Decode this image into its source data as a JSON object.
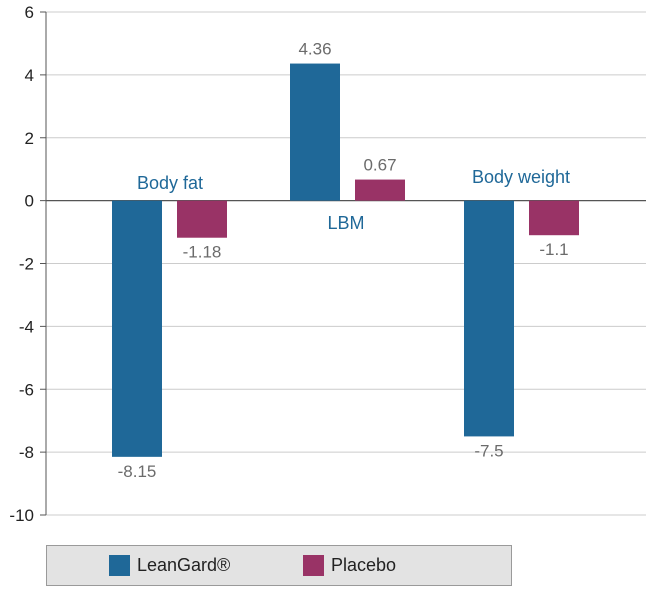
{
  "chart_data": {
    "type": "bar",
    "categories": [
      "Body fat",
      "LBM",
      "Body weight"
    ],
    "series": [
      {
        "name": "LeanGard®",
        "values": [
          -8.15,
          4.36,
          -7.5
        ],
        "labels": [
          "-8.15",
          "4.36",
          "-7.5"
        ],
        "color": "#1f6898"
      },
      {
        "name": "Placebo",
        "values": [
          -1.18,
          0.67,
          -1.1
        ],
        "labels": [
          "-1.18",
          "0.67",
          "-1.1"
        ],
        "color": "#993366"
      }
    ],
    "y_ticks": [
      6,
      4,
      2,
      0,
      -2,
      -4,
      -6,
      -8,
      -10
    ],
    "y_tick_labels": [
      "6",
      "4",
      "2",
      "0",
      "-2",
      "-4",
      "-6",
      "-8",
      "-10"
    ],
    "ylim": [
      -10,
      6
    ],
    "grid": true,
    "legend_position": "bottom-left",
    "category_label_color": "#1f6898"
  }
}
